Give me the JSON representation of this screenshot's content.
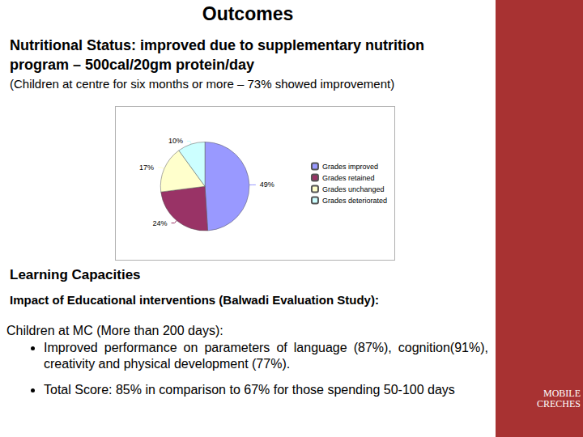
{
  "document": {
    "title": "Outcomes",
    "heading": "Nutritional Status: improved due to supplementary nutrition program – 500cal/20gm protein/day",
    "note": "(Children at centre for six months or more – 73% showed improvement)",
    "section2": {
      "title": "Learning Capacities",
      "subtitle": "Impact of Educational interventions (Balwadi Evaluation Study):",
      "intro": "Children at MC (More than 200 days):",
      "bullets": [
        "Improved performance on parameters of language (87%), cognition(91%), creativity and physical development (77%).",
        "Total Score: 85% in comparison to 67% for those spending 50-100 days"
      ]
    },
    "logo": "MOBILE CRECHES"
  },
  "chart_data": {
    "type": "pie",
    "categories": [
      "Grades improved",
      "Grades retained",
      "Grades unchanged",
      "Grades deteriorated"
    ],
    "values": [
      49,
      24,
      17,
      10
    ],
    "value_labels": [
      "49%",
      "24%",
      "17%",
      "10%"
    ],
    "colors": [
      "#9999ff",
      "#993366",
      "#ffffcc",
      "#ccffff"
    ],
    "data_labels": true,
    "legend": "right"
  }
}
